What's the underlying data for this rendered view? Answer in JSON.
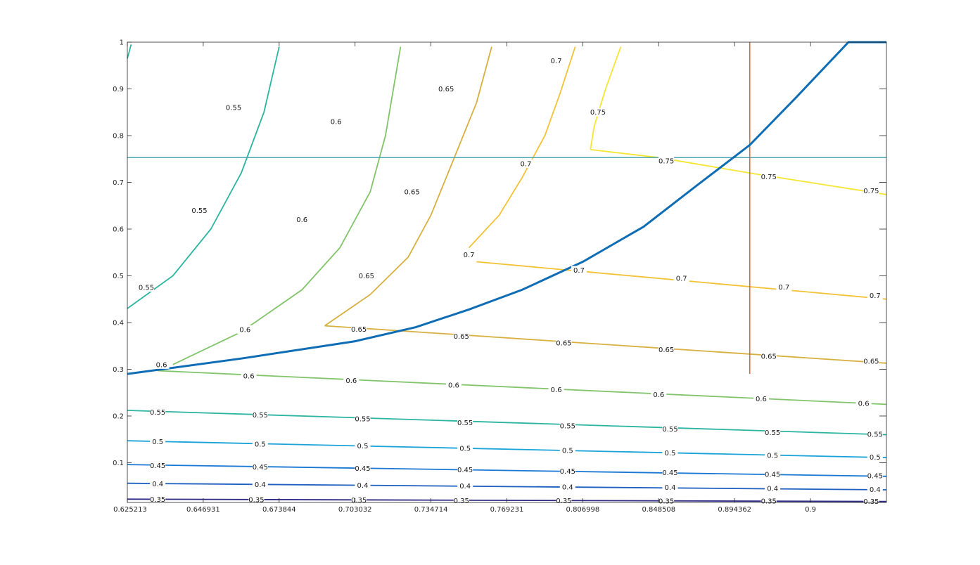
{
  "chart_data": {
    "type": "contour",
    "title": "",
    "xlabel": "",
    "ylabel": "",
    "grid": false,
    "x_ticks": [
      "0.625213",
      "0.646931",
      "0.673844",
      "0.703032",
      "0.734714",
      "0.769231",
      "0.806998",
      "0.848508",
      "0.894362",
      "0.9"
    ],
    "y_ticks": [
      "0.1",
      "0.2",
      "0.3",
      "0.4",
      "0.5",
      "0.6",
      "0.7",
      "0.8",
      "0.9",
      "1"
    ],
    "x_tick_positions": [
      0.0,
      1,
      2,
      3,
      4,
      5,
      6,
      7,
      8,
      9
    ],
    "ylim": [
      0.015,
      1.0
    ],
    "xlim": [
      0.0,
      10.0
    ],
    "reference_lines": [
      {
        "orientation": "horizontal",
        "y": 0.753,
        "color": "#4daab5"
      },
      {
        "orientation": "vertical",
        "x": 8.2,
        "y_from": 0.29,
        "y_to": 1.0,
        "color": "#c8622a"
      }
    ],
    "boundary_curve": {
      "color": "#0e6db5",
      "points": [
        [
          0.0,
          0.29
        ],
        [
          1.5,
          0.323
        ],
        [
          3.0,
          0.36
        ],
        [
          3.8,
          0.39
        ],
        [
          4.5,
          0.428
        ],
        [
          5.2,
          0.47
        ],
        [
          6.0,
          0.53
        ],
        [
          6.8,
          0.605
        ],
        [
          7.5,
          0.693
        ],
        [
          8.2,
          0.78
        ],
        [
          8.8,
          0.88
        ],
        [
          9.5,
          1.0
        ],
        [
          10.0,
          1.0
        ]
      ]
    },
    "contour_levels": [
      {
        "level": "0.35",
        "color": "#2f2a83",
        "lines": [
          [
            [
              0.0,
              0.022
            ],
            [
              10.0,
              0.017
            ]
          ]
        ],
        "labels": [
          [
            0.4,
            0.022
          ],
          [
            1.7,
            0.021
          ],
          [
            3.05,
            0.02
          ],
          [
            4.4,
            0.019
          ],
          [
            5.75,
            0.019
          ],
          [
            7.1,
            0.018
          ],
          [
            8.45,
            0.018
          ],
          [
            9.8,
            0.017
          ]
        ]
      },
      {
        "level": "0.4",
        "color": "#1e5fc0",
        "lines": [
          [
            [
              0.0,
              0.056
            ],
            [
              10.0,
              0.042
            ]
          ]
        ],
        "labels": [
          [
            0.4,
            0.055
          ],
          [
            1.75,
            0.053
          ],
          [
            3.1,
            0.052
          ],
          [
            4.45,
            0.05
          ],
          [
            5.8,
            0.048
          ],
          [
            7.15,
            0.047
          ],
          [
            8.5,
            0.045
          ],
          [
            9.85,
            0.043
          ]
        ]
      },
      {
        "level": "0.45",
        "color": "#1a78d4",
        "lines": [
          [
            [
              0.0,
              0.096
            ],
            [
              10.0,
              0.071
            ]
          ]
        ],
        "labels": [
          [
            0.4,
            0.094
          ],
          [
            1.75,
            0.091
          ],
          [
            3.1,
            0.088
          ],
          [
            4.45,
            0.085
          ],
          [
            5.8,
            0.082
          ],
          [
            7.15,
            0.079
          ],
          [
            8.5,
            0.075
          ],
          [
            9.85,
            0.072
          ]
        ]
      },
      {
        "level": "0.5",
        "color": "#1aa3d8",
        "lines": [
          [
            [
              0.0,
              0.147
            ],
            [
              10.0,
              0.111
            ]
          ]
        ],
        "labels": [
          [
            0.4,
            0.145
          ],
          [
            1.75,
            0.14
          ],
          [
            3.1,
            0.136
          ],
          [
            4.45,
            0.131
          ],
          [
            5.8,
            0.126
          ],
          [
            7.15,
            0.121
          ],
          [
            8.5,
            0.116
          ],
          [
            9.85,
            0.112
          ]
        ]
      },
      {
        "level": "0.55",
        "color": "#2bb5a0",
        "lines": [
          [
            [
              0.0,
              0.212
            ],
            [
              10.0,
              0.16
            ]
          ],
          [
            [
              0.0,
              0.43
            ],
            [
              0.6,
              0.5
            ],
            [
              1.1,
              0.6
            ],
            [
              1.5,
              0.72
            ],
            [
              1.8,
              0.85
            ],
            [
              2.0,
              0.99
            ]
          ],
          [
            [
              0.0,
              0.965
            ],
            [
              0.05,
              0.995
            ]
          ]
        ],
        "labels": [
          [
            0.4,
            0.208
          ],
          [
            1.75,
            0.202
          ],
          [
            3.1,
            0.194
          ],
          [
            4.45,
            0.186
          ],
          [
            5.8,
            0.179
          ],
          [
            7.15,
            0.172
          ],
          [
            8.5,
            0.165
          ],
          [
            9.85,
            0.161
          ],
          [
            0.25,
            0.475
          ],
          [
            0.95,
            0.64
          ],
          [
            1.4,
            0.86
          ]
        ]
      },
      {
        "level": "0.6",
        "color": "#82c46a",
        "lines": [
          [
            [
              0.4,
              0.297
            ],
            [
              10.0,
              0.225
            ]
          ],
          [
            [
              0.6,
              0.31
            ],
            [
              1.5,
              0.38
            ],
            [
              2.3,
              0.47
            ],
            [
              2.8,
              0.56
            ],
            [
              3.2,
              0.68
            ],
            [
              3.4,
              0.8
            ],
            [
              3.6,
              0.99
            ]
          ]
        ],
        "labels": [
          [
            1.6,
            0.286
          ],
          [
            2.95,
            0.276
          ],
          [
            4.3,
            0.266
          ],
          [
            5.65,
            0.256
          ],
          [
            7.0,
            0.246
          ],
          [
            8.35,
            0.237
          ],
          [
            9.7,
            0.227
          ],
          [
            0.45,
            0.31
          ],
          [
            1.55,
            0.385
          ],
          [
            2.3,
            0.62
          ],
          [
            2.75,
            0.83
          ]
        ]
      },
      {
        "level": "0.65",
        "color": "#d7b040",
        "lines": [
          [
            [
              2.6,
              0.393
            ],
            [
              10.0,
              0.313
            ]
          ],
          [
            [
              2.6,
              0.393
            ],
            [
              3.2,
              0.46
            ],
            [
              3.7,
              0.54
            ],
            [
              4.0,
              0.63
            ],
            [
              4.3,
              0.75
            ],
            [
              4.6,
              0.87
            ],
            [
              4.8,
              0.99
            ]
          ]
        ],
        "labels": [
          [
            3.05,
            0.386
          ],
          [
            4.4,
            0.371
          ],
          [
            5.75,
            0.356
          ],
          [
            7.1,
            0.342
          ],
          [
            8.45,
            0.328
          ],
          [
            9.8,
            0.317
          ],
          [
            3.15,
            0.5
          ],
          [
            3.75,
            0.68
          ],
          [
            4.2,
            0.9
          ]
        ]
      },
      {
        "level": "0.7",
        "color": "#f3c236",
        "lines": [
          [
            [
              4.6,
              0.53
            ],
            [
              10.0,
              0.45
            ]
          ],
          [
            [
              4.5,
              0.56
            ],
            [
              4.9,
              0.63
            ],
            [
              5.2,
              0.71
            ],
            [
              5.5,
              0.8
            ],
            [
              5.7,
              0.89
            ],
            [
              5.9,
              0.99
            ]
          ]
        ],
        "labels": [
          [
            5.95,
            0.512
          ],
          [
            7.3,
            0.495
          ],
          [
            8.65,
            0.476
          ],
          [
            9.85,
            0.458
          ],
          [
            4.5,
            0.545
          ],
          [
            5.25,
            0.74
          ],
          [
            5.65,
            0.96
          ]
        ]
      },
      {
        "level": "0.75",
        "color": "#f5e632",
        "lines": [
          [
            [
              6.1,
              0.77
            ],
            [
              7.0,
              0.753
            ],
            [
              8.2,
              0.72
            ],
            [
              10.0,
              0.674
            ]
          ],
          [
            [
              6.1,
              0.77
            ],
            [
              6.15,
              0.82
            ],
            [
              6.3,
              0.9
            ],
            [
              6.5,
              0.99
            ]
          ]
        ],
        "labels": [
          [
            7.1,
            0.746
          ],
          [
            8.45,
            0.712
          ],
          [
            9.8,
            0.682
          ],
          [
            6.2,
            0.85
          ]
        ]
      }
    ]
  }
}
